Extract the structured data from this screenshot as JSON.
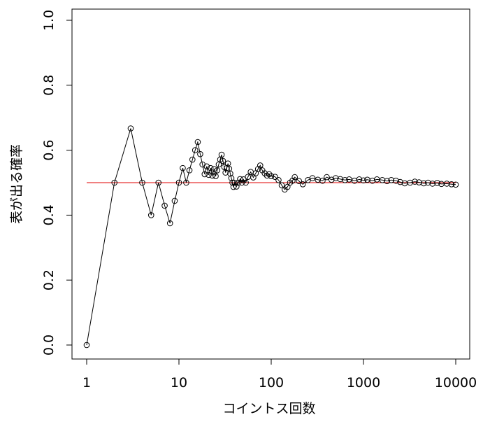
{
  "chart_data": {
    "type": "scatter",
    "title": "",
    "xlabel": "コイントス回数",
    "ylabel": "表が出る確率",
    "xscale": "log",
    "xlim": [
      1,
      10000
    ],
    "ylim": [
      0,
      1
    ],
    "x_ticks": [
      1,
      10,
      100,
      1000,
      10000
    ],
    "x_tick_labels": [
      "1",
      "10",
      "100",
      "1000",
      "10000"
    ],
    "y_ticks": [
      0,
      0.2,
      0.4,
      0.6,
      0.8,
      1.0
    ],
    "y_tick_labels": [
      "0.0",
      "0.2",
      "0.4",
      "0.6",
      "0.8",
      "1.0"
    ],
    "reference_line": {
      "y": 0.5,
      "color": "#e00000"
    },
    "line_color": "#000000",
    "marker": "open-circle",
    "grid": false,
    "series": [
      {
        "x": [
          1,
          2,
          3,
          4,
          5,
          6,
          7,
          8,
          9,
          10,
          11,
          12,
          13,
          14,
          15,
          16,
          17,
          18,
          19,
          20,
          21,
          22,
          23,
          24,
          25,
          26,
          27,
          28,
          29,
          30,
          31,
          32,
          33,
          34,
          35,
          36,
          37,
          38,
          39,
          40,
          42,
          44,
          46,
          48,
          50,
          53,
          56,
          60,
          64,
          68,
          72,
          76,
          80,
          85,
          90,
          95,
          100,
          110,
          120,
          130,
          140,
          150,
          160,
          170,
          180,
          200,
          220,
          250,
          280,
          320,
          360,
          400,
          450,
          500,
          560,
          630,
          700,
          800,
          900,
          1000,
          1100,
          1250,
          1400,
          1600,
          1800,
          2000,
          2250,
          2500,
          2800,
          3200,
          3600,
          4000,
          4500,
          5000,
          5600,
          6300,
          7000,
          8000,
          9000,
          10000
        ],
        "y": [
          0.0,
          0.5,
          0.667,
          0.5,
          0.4,
          0.5,
          0.429,
          0.375,
          0.444,
          0.5,
          0.545,
          0.5,
          0.538,
          0.571,
          0.6,
          0.625,
          0.588,
          0.556,
          0.526,
          0.55,
          0.524,
          0.545,
          0.522,
          0.542,
          0.52,
          0.538,
          0.556,
          0.571,
          0.586,
          0.567,
          0.548,
          0.531,
          0.545,
          0.559,
          0.543,
          0.528,
          0.514,
          0.5,
          0.487,
          0.5,
          0.488,
          0.5,
          0.511,
          0.5,
          0.51,
          0.5,
          0.518,
          0.533,
          0.516,
          0.529,
          0.542,
          0.553,
          0.538,
          0.529,
          0.522,
          0.526,
          0.52,
          0.518,
          0.508,
          0.492,
          0.479,
          0.487,
          0.5,
          0.506,
          0.517,
          0.505,
          0.495,
          0.508,
          0.514,
          0.509,
          0.506,
          0.517,
          0.509,
          0.514,
          0.511,
          0.508,
          0.51,
          0.506,
          0.51,
          0.507,
          0.509,
          0.506,
          0.51,
          0.508,
          0.505,
          0.508,
          0.506,
          0.502,
          0.498,
          0.5,
          0.503,
          0.501,
          0.498,
          0.5,
          0.497,
          0.499,
          0.496,
          0.497,
          0.495,
          0.494
        ]
      }
    ]
  }
}
